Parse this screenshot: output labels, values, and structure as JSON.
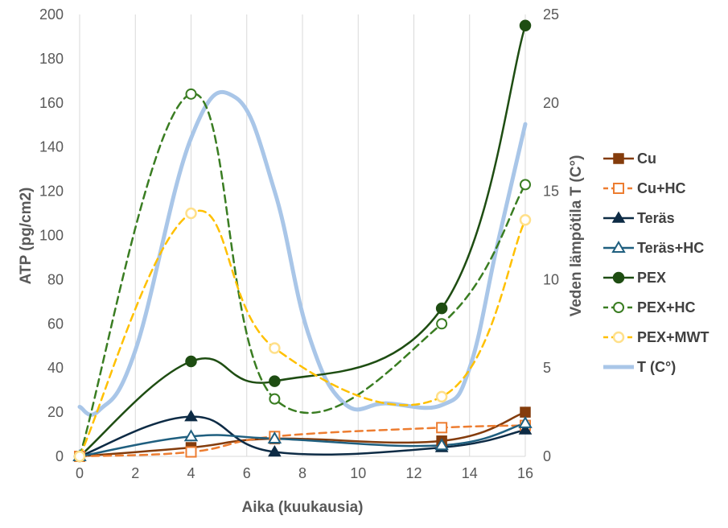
{
  "chart_data": {
    "type": "scatter",
    "title": "",
    "xlabel": "Aika (kuukausia)",
    "ylabel": "ATP (pg/cm2)",
    "y2label": "Veden lämpötila T (C°)",
    "xlim": [
      0,
      16
    ],
    "ylim": [
      0,
      200
    ],
    "y2lim": [
      0,
      25
    ],
    "x_ticks": [
      "0",
      "2",
      "4",
      "6",
      "8",
      "10",
      "12",
      "14",
      "16"
    ],
    "y_ticks": [
      "0",
      "20",
      "40",
      "60",
      "80",
      "100",
      "120",
      "140",
      "160",
      "180",
      "200"
    ],
    "y2_ticks": [
      "0",
      "5",
      "10",
      "15",
      "20",
      "25"
    ],
    "grid": "vertical",
    "legend_position": "right",
    "series": [
      {
        "name": "Cu",
        "axis": "left",
        "color": "#843c0c",
        "marker": "square-filled",
        "dash": false,
        "x": [
          0,
          4,
          7,
          13,
          16
        ],
        "values": [
          0,
          4,
          8,
          7,
          20
        ]
      },
      {
        "name": "Cu+HC",
        "axis": "left",
        "color": "#ed7d31",
        "marker": "square-open",
        "dash": true,
        "x": [
          0,
          4,
          7,
          13,
          16
        ],
        "values": [
          0,
          2,
          9,
          13,
          14
        ]
      },
      {
        "name": "Teräs",
        "axis": "left",
        "color": "#0d2b45",
        "marker": "triangle-filled",
        "dash": false,
        "x": [
          0,
          4,
          7,
          13,
          16
        ],
        "values": [
          0,
          18,
          2,
          4,
          12
        ]
      },
      {
        "name": "Teräs+HC",
        "axis": "left",
        "color": "#1f5f7f",
        "marker": "triangle-open",
        "dash": false,
        "x": [
          0,
          4,
          7,
          13,
          16
        ],
        "values": [
          0,
          9,
          8,
          5,
          15
        ]
      },
      {
        "name": "PEX",
        "axis": "left",
        "color": "#1e4d12",
        "marker": "circle-filled",
        "dash": false,
        "x": [
          0,
          4,
          7,
          13,
          16
        ],
        "values": [
          0,
          43,
          34,
          67,
          195
        ]
      },
      {
        "name": "PEX+HC",
        "axis": "left",
        "color": "#3a7d22",
        "marker": "circle-open",
        "dash": true,
        "x": [
          0,
          4,
          7,
          13,
          16
        ],
        "values": [
          0,
          164,
          26,
          60,
          123
        ]
      },
      {
        "name": "PEX+MWT",
        "axis": "left",
        "color": "#ffc000",
        "marker": "circle-open-yellow",
        "dash": true,
        "x": [
          0,
          4,
          7,
          13,
          16
        ],
        "values": [
          0,
          110,
          49,
          27,
          107
        ]
      },
      {
        "name": "T (C°)",
        "axis": "right",
        "color": "#a9c6e8",
        "marker": "none",
        "dash": false,
        "x": [
          0,
          0.7,
          2,
          4,
          5.6,
          7,
          8.2,
          9.5,
          11,
          13,
          14,
          15,
          16
        ],
        "values": [
          2.8,
          2.6,
          6,
          18,
          20.3,
          15,
          7,
          3,
          3,
          2.9,
          5,
          12,
          18.8
        ]
      }
    ]
  }
}
